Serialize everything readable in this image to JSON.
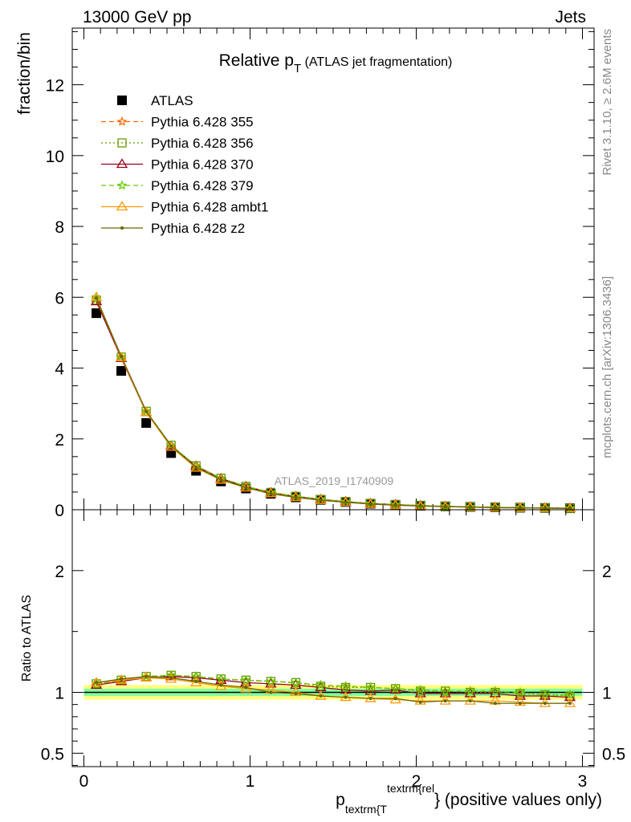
{
  "header": {
    "left": "13000 GeV pp",
    "right": "Jets"
  },
  "title": {
    "main": "Relative p",
    "sub": "T",
    "suffix": " (ATLAS jet fragmentation)"
  },
  "side_labels": {
    "rivet": "Rivet 3.1.10, ≥ 2.6M events",
    "mcplots": "mcplots.cern.ch [arXiv:1306.3436]"
  },
  "watermark": "ATLAS_2019_I1740909",
  "chart_data": [
    {
      "type": "line",
      "panel": "main",
      "ylabel": "fraction/bin",
      "xlim": [
        -0.07,
        3.07
      ],
      "ylim": [
        0,
        13.6
      ],
      "yticks": [
        0,
        2,
        4,
        6,
        8,
        10,
        12
      ],
      "x": [
        0.075,
        0.225,
        0.375,
        0.525,
        0.675,
        0.825,
        0.975,
        1.125,
        1.275,
        1.425,
        1.575,
        1.725,
        1.875,
        2.025,
        2.175,
        2.325,
        2.475,
        2.625,
        2.775,
        2.925
      ],
      "legend_position": "top-left",
      "series": [
        {
          "name": "ATLAS",
          "color": "#000000",
          "marker": "square",
          "line": "none",
          "values": [
            5.55,
            3.92,
            2.45,
            1.6,
            1.1,
            0.8,
            0.6,
            0.45,
            0.35,
            0.28,
            0.22,
            0.17,
            0.14,
            0.115,
            0.095,
            0.08,
            0.068,
            0.058,
            0.05,
            0.043
          ]
        },
        {
          "name": "Pythia 6.428 355",
          "color": "#ff6600",
          "marker": "star",
          "line": "dashed",
          "values": [
            5.95,
            4.32,
            2.78,
            1.82,
            1.24,
            0.89,
            0.66,
            0.49,
            0.38,
            0.3,
            0.23,
            0.18,
            0.145,
            0.118,
            0.097,
            0.081,
            0.069,
            0.059,
            0.05,
            0.043
          ]
        },
        {
          "name": "Pythia 6.428 356",
          "color": "#669900",
          "marker": "open-square",
          "line": "dotted",
          "values": [
            5.92,
            4.31,
            2.78,
            1.82,
            1.24,
            0.89,
            0.66,
            0.49,
            0.38,
            0.29,
            0.23,
            0.18,
            0.145,
            0.117,
            0.096,
            0.08,
            0.068,
            0.058,
            0.049,
            0.042
          ]
        },
        {
          "name": "Pythia 6.428 370",
          "color": "#99001a",
          "marker": "open-triangle",
          "line": "solid",
          "values": [
            5.88,
            4.28,
            2.75,
            1.8,
            1.23,
            0.88,
            0.65,
            0.48,
            0.37,
            0.29,
            0.225,
            0.175,
            0.143,
            0.114,
            0.094,
            0.078,
            0.066,
            0.056,
            0.048,
            0.041
          ]
        },
        {
          "name": "Pythia 6.428 379",
          "color": "#66cc00",
          "marker": "star",
          "line": "dashed",
          "values": [
            5.95,
            4.32,
            2.78,
            1.82,
            1.24,
            0.89,
            0.66,
            0.49,
            0.38,
            0.3,
            0.23,
            0.18,
            0.145,
            0.118,
            0.097,
            0.081,
            0.069,
            0.059,
            0.05,
            0.043
          ]
        },
        {
          "name": "Pythia 6.428 ambt1",
          "color": "#ff9900",
          "marker": "open-triangle",
          "line": "solid",
          "values": [
            6.0,
            4.3,
            2.75,
            1.77,
            1.18,
            0.84,
            0.62,
            0.46,
            0.35,
            0.27,
            0.21,
            0.16,
            0.13,
            0.106,
            0.088,
            0.074,
            0.062,
            0.053,
            0.045,
            0.039
          ]
        },
        {
          "name": "Pythia 6.428 z2",
          "color": "#666600",
          "marker": "dot",
          "line": "solid",
          "values": [
            5.98,
            4.33,
            2.78,
            1.8,
            1.2,
            0.85,
            0.63,
            0.45,
            0.35,
            0.27,
            0.21,
            0.16,
            0.13,
            0.106,
            0.088,
            0.074,
            0.062,
            0.053,
            0.045,
            0.039
          ]
        }
      ]
    },
    {
      "type": "line",
      "panel": "ratio",
      "ylabel": "Ratio to ATLAS",
      "xlabel_main": "p",
      "xlabel_sub": "textrm{T",
      "xlabel_sup": "textrm{rel",
      "xlabel_tail": "} (positive values only)",
      "ylim": [
        0.39,
        2.5
      ],
      "yticks": [
        0.5,
        1,
        2
      ],
      "xticks": [
        0,
        1,
        2,
        3
      ],
      "x": [
        0.075,
        0.225,
        0.375,
        0.525,
        0.675,
        0.825,
        0.975,
        1.125,
        1.275,
        1.425,
        1.575,
        1.725,
        1.875,
        2.025,
        2.175,
        2.325,
        2.475,
        2.625,
        2.775,
        2.925
      ],
      "band": {
        "inner": 0.03,
        "outer": 0.06,
        "inner_color": "#66ffaa",
        "outer_color": "#ffff66"
      },
      "series": [
        {
          "name": "Pythia 6.428 355",
          "color": "#ff6600",
          "values": [
            1.07,
            1.1,
            1.13,
            1.14,
            1.13,
            1.11,
            1.1,
            1.09,
            1.08,
            1.06,
            1.05,
            1.04,
            1.03,
            1.02,
            1.01,
            1.01,
            1.01,
            1.0,
            0.98,
            0.98
          ]
        },
        {
          "name": "Pythia 6.428 356",
          "color": "#669900",
          "values": [
            1.07,
            1.1,
            1.13,
            1.14,
            1.13,
            1.11,
            1.1,
            1.09,
            1.08,
            1.05,
            1.04,
            1.04,
            1.03,
            1.01,
            1.01,
            1.0,
            1.0,
            0.99,
            0.98,
            0.97
          ]
        },
        {
          "name": "Pythia 6.428 370",
          "color": "#99001a",
          "values": [
            1.06,
            1.09,
            1.12,
            1.13,
            1.12,
            1.1,
            1.08,
            1.07,
            1.06,
            1.04,
            1.02,
            1.01,
            1.02,
            0.99,
            0.99,
            0.99,
            0.99,
            0.97,
            0.97,
            0.96
          ]
        },
        {
          "name": "Pythia 6.428 379",
          "color": "#66cc00",
          "values": [
            1.07,
            1.1,
            1.13,
            1.14,
            1.13,
            1.11,
            1.1,
            1.09,
            1.08,
            1.06,
            1.05,
            1.04,
            1.03,
            1.02,
            1.01,
            1.01,
            1.01,
            1.0,
            0.98,
            0.98
          ]
        },
        {
          "name": "Pythia 6.428 ambt1",
          "color": "#ff9900",
          "values": [
            1.08,
            1.1,
            1.12,
            1.11,
            1.08,
            1.05,
            1.03,
            1.02,
            1.0,
            0.97,
            0.96,
            0.95,
            0.94,
            0.93,
            0.93,
            0.93,
            0.93,
            0.92,
            0.91,
            0.91
          ]
        },
        {
          "name": "Pythia 6.428 z2",
          "color": "#666600",
          "values": [
            1.08,
            1.11,
            1.13,
            1.12,
            1.09,
            1.06,
            1.04,
            1.0,
            0.99,
            0.97,
            0.96,
            0.95,
            0.95,
            0.92,
            0.93,
            0.93,
            0.91,
            0.91,
            0.91,
            0.91
          ]
        }
      ]
    }
  ]
}
